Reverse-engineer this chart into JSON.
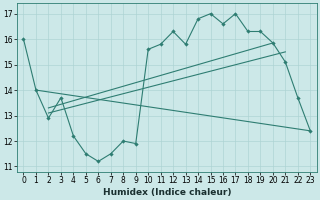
{
  "xlabel": "Humidex (Indice chaleur)",
  "bg_color": "#cce8e8",
  "line_color": "#2e7d72",
  "grid_color": "#aed4d4",
  "xlim": [
    -0.5,
    23.5
  ],
  "ylim": [
    10.8,
    17.4
  ],
  "yticks": [
    11,
    12,
    13,
    14,
    15,
    16,
    17
  ],
  "xticks": [
    0,
    1,
    2,
    3,
    4,
    5,
    6,
    7,
    8,
    9,
    10,
    11,
    12,
    13,
    14,
    15,
    16,
    17,
    18,
    19,
    20,
    21,
    22,
    23
  ],
  "series": [
    {
      "x": [
        0,
        1,
        2,
        3,
        4,
        5,
        6,
        7,
        8,
        9,
        10,
        11,
        12,
        13,
        14,
        15,
        16,
        17,
        18,
        19,
        20,
        21,
        22,
        23
      ],
      "y": [
        16.0,
        14.0,
        12.9,
        13.7,
        12.2,
        11.5,
        11.2,
        11.5,
        12.0,
        11.9,
        15.6,
        15.8,
        16.3,
        15.8,
        16.8,
        17.0,
        16.6,
        17.0,
        16.3,
        16.3,
        15.85,
        15.1,
        13.7,
        12.4
      ],
      "marker": true
    },
    {
      "x": [
        1,
        23
      ],
      "y": [
        14.0,
        12.4
      ],
      "marker": false
    },
    {
      "x": [
        2,
        20
      ],
      "y": [
        13.3,
        15.85
      ],
      "marker": false
    },
    {
      "x": [
        2,
        21
      ],
      "y": [
        13.1,
        15.5
      ],
      "marker": false
    }
  ]
}
